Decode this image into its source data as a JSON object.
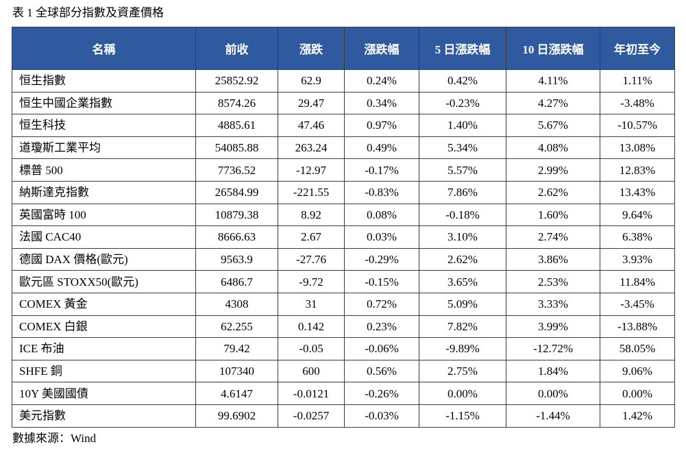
{
  "caption": "表 1 全球部分指數及資產價格",
  "table": {
    "headers": [
      "名稱",
      "前收",
      "漲跌",
      "漲跌幅",
      "5 日漲跌幅",
      "10 日漲跌幅",
      "年初至今"
    ],
    "rows": [
      [
        "恒生指數",
        "25852.92",
        "62.9",
        "0.24%",
        "0.42%",
        "4.11%",
        "1.11%"
      ],
      [
        "恒生中國企業指數",
        "8574.26",
        "29.47",
        "0.34%",
        "-0.23%",
        "4.27%",
        "-3.48%"
      ],
      [
        "恒生科技",
        "4885.61",
        "47.46",
        "0.97%",
        "1.40%",
        "5.67%",
        "-10.57%"
      ],
      [
        "道瓊斯工業平均",
        "54085.88",
        "263.24",
        "0.49%",
        "5.34%",
        "4.08%",
        "13.08%"
      ],
      [
        "標普 500",
        "7736.52",
        "-12.97",
        "-0.17%",
        "5.57%",
        "2.99%",
        "12.83%"
      ],
      [
        "納斯達克指數",
        "26584.99",
        "-221.55",
        "-0.83%",
        "7.86%",
        "2.62%",
        "13.43%"
      ],
      [
        "英國富時 100",
        "10879.38",
        "8.92",
        "0.08%",
        "-0.18%",
        "1.60%",
        "9.64%"
      ],
      [
        "法國 CAC40",
        "8666.63",
        "2.67",
        "0.03%",
        "3.10%",
        "2.74%",
        "6.38%"
      ],
      [
        "德國 DAX 價格(歐元)",
        "9563.9",
        "-27.76",
        "-0.29%",
        "2.62%",
        "3.86%",
        "3.93%"
      ],
      [
        "歐元區 STOXX50(歐元)",
        "6486.7",
        "-9.72",
        "-0.15%",
        "3.65%",
        "2.53%",
        "11.84%"
      ],
      [
        "COMEX 黃金",
        "4308",
        "31",
        "0.72%",
        "5.09%",
        "3.33%",
        "-3.45%"
      ],
      [
        "COMEX 白銀",
        "62.255",
        "0.142",
        "0.23%",
        "7.82%",
        "3.99%",
        "-13.88%"
      ],
      [
        "ICE 布油",
        "79.42",
        "-0.05",
        "-0.06%",
        "-9.89%",
        "-12.72%",
        "58.05%"
      ],
      [
        "SHFE 銅",
        "107340",
        "600",
        "0.56%",
        "2.75%",
        "1.84%",
        "9.06%"
      ],
      [
        "10Y 美國國債",
        "4.6147",
        "-0.0121",
        "-0.26%",
        "0.00%",
        "0.00%",
        "0.00%"
      ],
      [
        "美元指數",
        "99.6902",
        "-0.0257",
        "-0.03%",
        "-1.15%",
        "-1.44%",
        "1.42%"
      ]
    ]
  },
  "source": "數據來源：Wind",
  "colors": {
    "header_bg": "#2f5aa0",
    "header_text": "#ffffff",
    "border": "#3a3a3a"
  }
}
